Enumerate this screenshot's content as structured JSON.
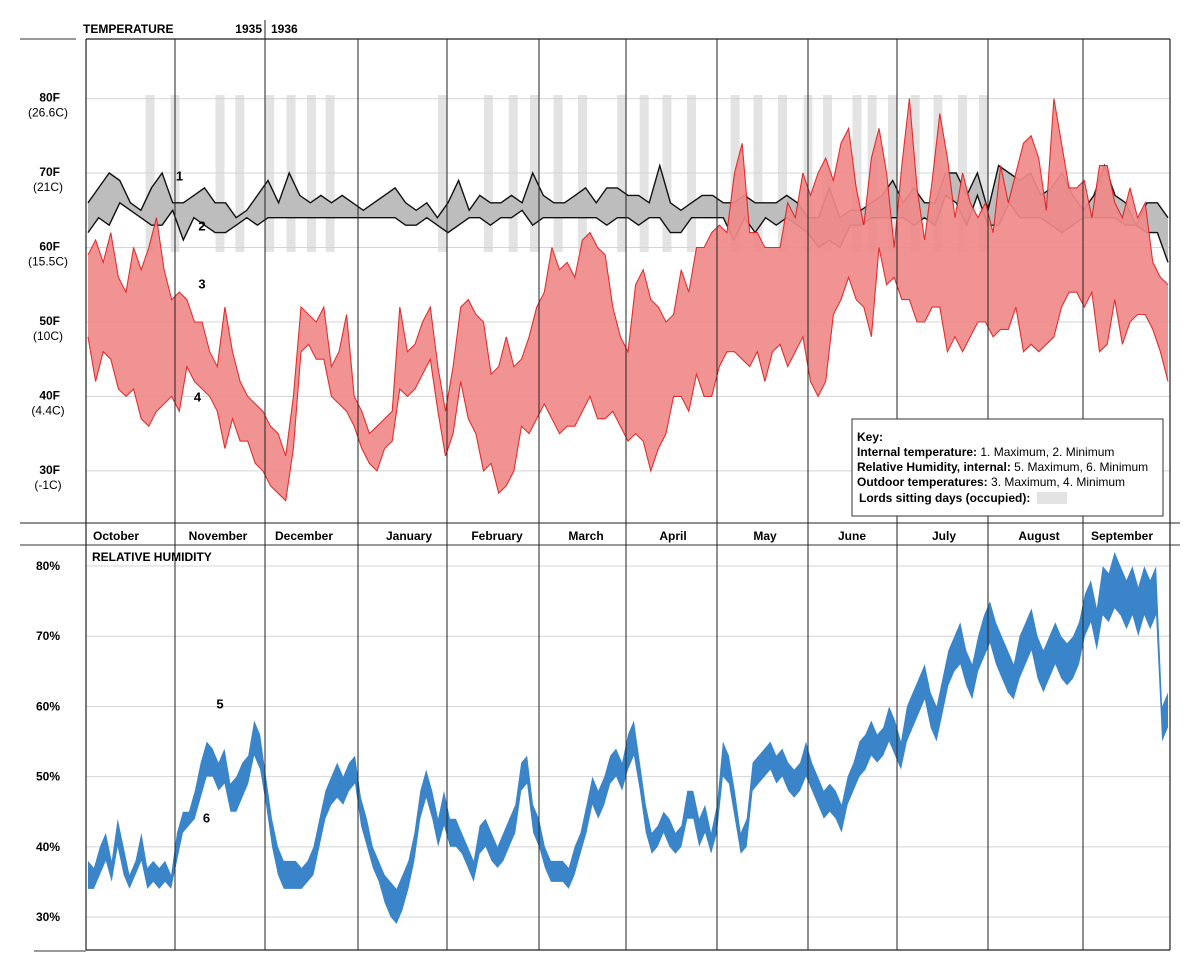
{
  "chart_data": {
    "type": "area",
    "temperature_panel": {
      "title": "TEMPERATURE",
      "year_start": "1935",
      "year_end": "1936",
      "y_ticks": [
        {
          "value": 80,
          "label": "80F",
          "sub": "(26.6C)"
        },
        {
          "value": 70,
          "label": "70F",
          "sub": "(21C)"
        },
        {
          "value": 60,
          "label": "60F",
          "sub": "(15.5C)"
        },
        {
          "value": 50,
          "label": "50F",
          "sub": "(10C)"
        },
        {
          "value": 40,
          "label": "40F",
          "sub": "(4.4C)"
        },
        {
          "value": 30,
          "label": "30F",
          "sub": "(-1C)"
        }
      ],
      "ylim": [
        23,
        88
      ],
      "series_labels": [
        {
          "label": "1",
          "month": 1.05,
          "value": 69
        },
        {
          "label": "2",
          "month": 1.3,
          "value": 62.3
        },
        {
          "label": "3",
          "month": 1.3,
          "value": 54.5
        },
        {
          "label": "4",
          "month": 1.25,
          "value": 39.3
        }
      ],
      "sitting_days": [
        0.72,
        1.0,
        1.5,
        1.72,
        2.05,
        2.28,
        2.5,
        2.7,
        3.95,
        4.45,
        4.72,
        4.95,
        5.22,
        5.5,
        5.95,
        6.2,
        6.45,
        6.72,
        7.2,
        7.45,
        7.72,
        8.0,
        8.22,
        8.55,
        8.72,
        8.95,
        9.2,
        9.45,
        9.72,
        9.95
      ],
      "internal_max": [
        66,
        68,
        70,
        69,
        66,
        65,
        68,
        70,
        66,
        66,
        67,
        68,
        66,
        66,
        64,
        65,
        67,
        69,
        66,
        70,
        67,
        66,
        67,
        66,
        67,
        66,
        65,
        66,
        67,
        68,
        66,
        65,
        66,
        64,
        66,
        69,
        65,
        67,
        66,
        66,
        67,
        66,
        70,
        67,
        66,
        66,
        67,
        68,
        66,
        68,
        68,
        67,
        67,
        66,
        71,
        66,
        65,
        66,
        67,
        67,
        66,
        66,
        67,
        66,
        66,
        66,
        67,
        66,
        64,
        64,
        68,
        64,
        65,
        65,
        66,
        67,
        69,
        66,
        68,
        66,
        66,
        70,
        70,
        67,
        70,
        65,
        71,
        70,
        69,
        70,
        67,
        68,
        70,
        67,
        65,
        67,
        71,
        67,
        66,
        63,
        66,
        66,
        64
      ],
      "internal_min": [
        62,
        64,
        63,
        66,
        65,
        64,
        63,
        63,
        65,
        61,
        64,
        63,
        62,
        62,
        63,
        64,
        63,
        64,
        64,
        64,
        64,
        64,
        64,
        64,
        64,
        64,
        64,
        64,
        64,
        64,
        63,
        63,
        64,
        63,
        62,
        63,
        64,
        64,
        63,
        64,
        64,
        65,
        63,
        64,
        64,
        64,
        64,
        64,
        64,
        63,
        64,
        64,
        63,
        64,
        64,
        62,
        62,
        64,
        64,
        64,
        64,
        61,
        64,
        62,
        64,
        63,
        64,
        63,
        62,
        60,
        61,
        60,
        63,
        63,
        64,
        64,
        64,
        64,
        63,
        64,
        63,
        67,
        66,
        63,
        67,
        63,
        63,
        66,
        64,
        64,
        64,
        63,
        62,
        63,
        64,
        64,
        64,
        64,
        63,
        63,
        62,
        62,
        58
      ],
      "outdoor_max": [
        59,
        61,
        58,
        62,
        56,
        54,
        60,
        57,
        60,
        64,
        57,
        53,
        54,
        53,
        50,
        50,
        46,
        44,
        52,
        46,
        42,
        40,
        39,
        38,
        36,
        35,
        32,
        40,
        52,
        51,
        50,
        52,
        44,
        46,
        51,
        40,
        38,
        35,
        36,
        37,
        38,
        52,
        46,
        47,
        50,
        52,
        44,
        38,
        44,
        52,
        53,
        51,
        50,
        43,
        44,
        48,
        44,
        45,
        48,
        52,
        54,
        60,
        57,
        58,
        56,
        61,
        62,
        60,
        59,
        52,
        48,
        46,
        55,
        57,
        53,
        52,
        50,
        51,
        57,
        54,
        60,
        60,
        62,
        63,
        62,
        70,
        74,
        62,
        62,
        60,
        60,
        60,
        66,
        64,
        70,
        67,
        70,
        72,
        69,
        74,
        76,
        68,
        63,
        72,
        76,
        70,
        60,
        71,
        80,
        68,
        61,
        69,
        78,
        72,
        64,
        70,
        66,
        64,
        66,
        62,
        71,
        66,
        70,
        74,
        75,
        72,
        65,
        80,
        74,
        68,
        68,
        69,
        64,
        71,
        71,
        66,
        64,
        68,
        64,
        66,
        58,
        56,
        55
      ],
      "outdoor_min": [
        48,
        42,
        46,
        45,
        41,
        40,
        41,
        37,
        36,
        38,
        39,
        40,
        38,
        44,
        42,
        41,
        40,
        38,
        33,
        37,
        34,
        34,
        31,
        30,
        28,
        27,
        26,
        33,
        46,
        47,
        45,
        45,
        40,
        39,
        38,
        36,
        33,
        31,
        30,
        33,
        34,
        41,
        40,
        41,
        43,
        45,
        38,
        32,
        35,
        42,
        37,
        35,
        30,
        31,
        27,
        28,
        30,
        36,
        35,
        37,
        39,
        37,
        35,
        36,
        36,
        38,
        40,
        37,
        37,
        38,
        36,
        34,
        35,
        34,
        30,
        33,
        35,
        40,
        40,
        38,
        43,
        40,
        40,
        44,
        46,
        46,
        45,
        44,
        46,
        42,
        46,
        47,
        44,
        46,
        48,
        42,
        40,
        42,
        51,
        53,
        56,
        53,
        52,
        48,
        60,
        55,
        56,
        53,
        53,
        50,
        50,
        52,
        52,
        46,
        48,
        46,
        48,
        50,
        50,
        48,
        49,
        49,
        52,
        46,
        47,
        46,
        47,
        48,
        52,
        54,
        54,
        52,
        54,
        46,
        47,
        53,
        47,
        50,
        51,
        51,
        49,
        46,
        42
      ],
      "xlabel": ""
    },
    "humidity_panel": {
      "title": "RELATIVE HUMIDITY",
      "y_ticks": [
        {
          "value": 80,
          "label": "80%"
        },
        {
          "value": 70,
          "label": "70%"
        },
        {
          "value": 60,
          "label": "60%"
        },
        {
          "value": 50,
          "label": "50%"
        },
        {
          "value": 40,
          "label": "40%"
        },
        {
          "value": 30,
          "label": "30%"
        }
      ],
      "ylim": [
        25.3,
        83
      ],
      "series_labels": [
        {
          "label": "5",
          "month": 1.5,
          "value": 59.7
        },
        {
          "label": "6",
          "month": 1.35,
          "value": 43.5
        }
      ],
      "rh_max": [
        38,
        37,
        40,
        42,
        38,
        44,
        40,
        36,
        38,
        42,
        37,
        38,
        37,
        38,
        36,
        42,
        45,
        45,
        48,
        52,
        55,
        54,
        52,
        54,
        49,
        50,
        52,
        53,
        58,
        56,
        50,
        44,
        40,
        38,
        38,
        38,
        37,
        38,
        40,
        44,
        48,
        50,
        52,
        50,
        52,
        53,
        47,
        44,
        40,
        38,
        36,
        35,
        34,
        36,
        38,
        42,
        48,
        51,
        48,
        44,
        48,
        44,
        44,
        42,
        40,
        38,
        43,
        44,
        42,
        40,
        42,
        44,
        46,
        52,
        53,
        46,
        44,
        40,
        38,
        38,
        38,
        37,
        40,
        42,
        46,
        50,
        48,
        50,
        53,
        54,
        52,
        56,
        58,
        52,
        46,
        42,
        43,
        45,
        44,
        42,
        43,
        48,
        48,
        44,
        46,
        42,
        46,
        55,
        53,
        48,
        42,
        44,
        52,
        53,
        54,
        55,
        53,
        54,
        52,
        51,
        52,
        55,
        52,
        50,
        48,
        49,
        48,
        46,
        50,
        52,
        55,
        56,
        58,
        56,
        57,
        60,
        58,
        55,
        60,
        62,
        64,
        66,
        62,
        60,
        64,
        68,
        70,
        72,
        68,
        66,
        70,
        73,
        75,
        72,
        70,
        68,
        66,
        70,
        72,
        74,
        70,
        68,
        70,
        72,
        70,
        69,
        70,
        72,
        76,
        78,
        74,
        80,
        79,
        82,
        80,
        78,
        80,
        77,
        80,
        78,
        80,
        60,
        62
      ],
      "rh_min": [
        34,
        34,
        36,
        38,
        35,
        40,
        36,
        34,
        36,
        38,
        34,
        35,
        34,
        35,
        34,
        38,
        42,
        43,
        44,
        47,
        50,
        50,
        48,
        49,
        45,
        45,
        47,
        49,
        53,
        51,
        46,
        40,
        36,
        34,
        34,
        34,
        34,
        35,
        36,
        40,
        44,
        46,
        47,
        46,
        48,
        49,
        43,
        40,
        37,
        35,
        32,
        30,
        29,
        31,
        34,
        38,
        44,
        47,
        44,
        40,
        43,
        40,
        40,
        39,
        37,
        35,
        39,
        40,
        38,
        37,
        38,
        40,
        42,
        48,
        49,
        42,
        40,
        37,
        35,
        35,
        35,
        34,
        36,
        39,
        42,
        46,
        44,
        46,
        49,
        50,
        48,
        51,
        53,
        48,
        42,
        39,
        40,
        42,
        40,
        39,
        40,
        44,
        44,
        40,
        42,
        39,
        42,
        50,
        49,
        44,
        39,
        40,
        48,
        49,
        50,
        51,
        49,
        50,
        48,
        47,
        48,
        50,
        48,
        46,
        44,
        45,
        44,
        42,
        46,
        48,
        50,
        51,
        53,
        52,
        53,
        55,
        53,
        51,
        55,
        57,
        59,
        61,
        57,
        55,
        59,
        63,
        65,
        66,
        63,
        61,
        65,
        67,
        69,
        66,
        64,
        62,
        61,
        64,
        66,
        68,
        64,
        62,
        64,
        66,
        64,
        63,
        64,
        66,
        70,
        72,
        68,
        73,
        72,
        74,
        73,
        71,
        73,
        70,
        73,
        71,
        73,
        55,
        57
      ],
      "xlabel": ""
    },
    "months": [
      "October",
      "November",
      "December",
      "January",
      "February",
      "March",
      "April",
      "May",
      "June",
      "July",
      "August",
      "September"
    ],
    "key": {
      "title": "Key:",
      "line1_bold": "Internal temperature:",
      "line1_text": " 1. Maximum, 2. Minimum",
      "line2_bold": "Relative Humidity, internal:",
      "line2_text": " 5. Maximum, 6. Minimum",
      "line3_bold": "Outdoor temperatures:",
      "line3_text": " 3. Maximum, 4. Minimum",
      "line4_bold": "Lords sitting days (occupied):"
    },
    "colors": {
      "outdoor_fill": "#f08a8a",
      "outdoor_line": "#e01e1e",
      "internal_fill": "#bdbdbd",
      "internal_line": "#111111",
      "humidity": "#3a85c9",
      "sitting": "#e3e3e3",
      "grid": "#d4d4d4"
    }
  }
}
